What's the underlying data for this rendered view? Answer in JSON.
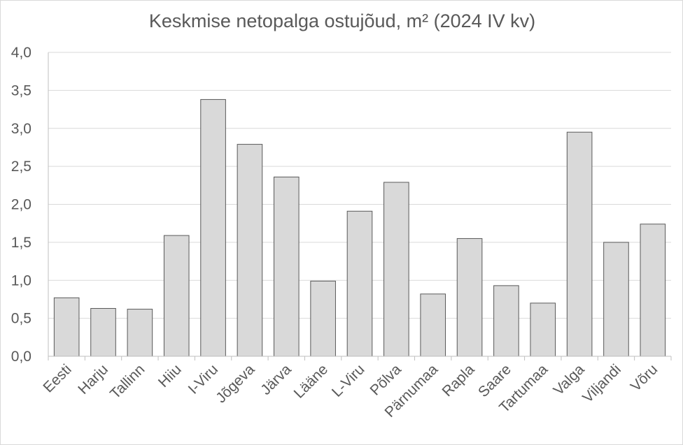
{
  "chart_data": {
    "type": "bar",
    "title": "Keskmise netopalga ostujõud, m² (2024 IV kv)",
    "xlabel": "",
    "ylabel": "",
    "ylim": [
      0,
      4
    ],
    "yticks": [
      "0,0",
      "0,5",
      "1,0",
      "1,5",
      "2,0",
      "2,5",
      "3,0",
      "3,5",
      "4,0"
    ],
    "grid": true,
    "legend": "none",
    "categories": [
      "Eesti",
      "Harju",
      "Tallinn",
      "Hiiu",
      "I-Viru",
      "Jõgeva",
      "Järva",
      "Lääne",
      "L-Viru",
      "Põlva",
      "Pärnumaa",
      "Rapla",
      "Saare",
      "Tartumaa",
      "Valga",
      "Viljandi",
      "Võru"
    ],
    "values": [
      0.77,
      0.63,
      0.62,
      1.59,
      3.38,
      2.79,
      2.36,
      0.99,
      1.91,
      2.29,
      0.82,
      1.55,
      0.93,
      0.7,
      2.95,
      1.5,
      1.74
    ],
    "colors": {
      "bar_fill": "#d9d9d9",
      "bar_stroke": "#595959",
      "grid": "#d9d9d9",
      "axis": "#bfbfbf",
      "text": "#595959"
    }
  }
}
